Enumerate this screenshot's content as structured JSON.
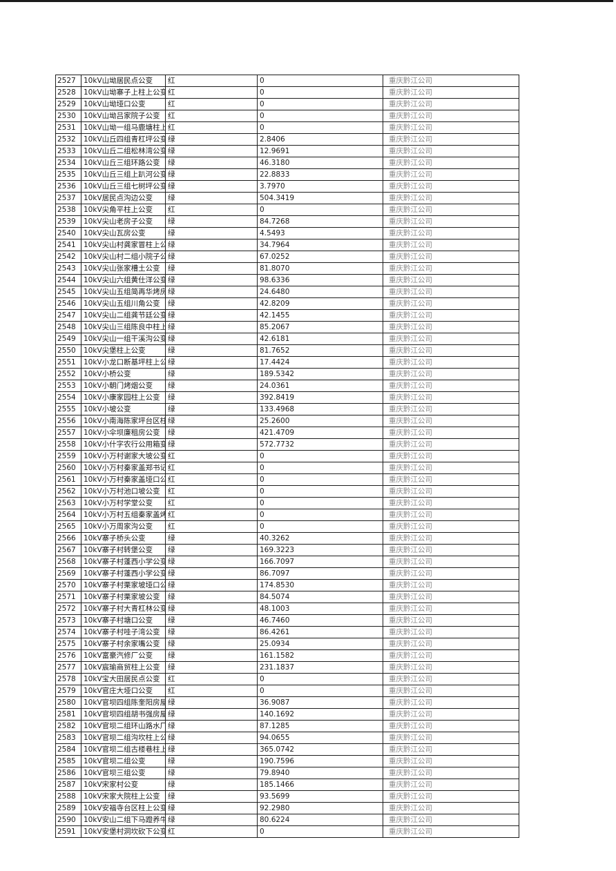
{
  "table": {
    "rows": [
      {
        "id": "2527",
        "name": "10kV山坳居民点公变",
        "status": "红",
        "value": "0",
        "company": "重庆黔江公司"
      },
      {
        "id": "2528",
        "name": "10kV山坳寨子上柱上公变",
        "status": "红",
        "value": "0",
        "company": "重庆黔江公司"
      },
      {
        "id": "2529",
        "name": "10kV山坳垭口公变",
        "status": "红",
        "value": "0",
        "company": "重庆黔江公司"
      },
      {
        "id": "2530",
        "name": "10kV山坳吕家院子公变",
        "status": "红",
        "value": "0",
        "company": "重庆黔江公司"
      },
      {
        "id": "2531",
        "name": "10kV山坳一组马鹿塘柱上",
        "status": "红",
        "value": "0",
        "company": "重庆黔江公司"
      },
      {
        "id": "2532",
        "name": "10kV山丘四组青杠坪公变",
        "status": "绿",
        "value": "2.8406",
        "company": "重庆黔江公司"
      },
      {
        "id": "2533",
        "name": "10kV山丘二组松林湾公变",
        "status": "绿",
        "value": "12.9691",
        "company": "重庆黔江公司"
      },
      {
        "id": "2534",
        "name": "10kV山丘三组环路公变",
        "status": "绿",
        "value": "46.3180",
        "company": "重庆黔江公司"
      },
      {
        "id": "2535",
        "name": "10kV山丘三组上趴河公变",
        "status": "绿",
        "value": "22.8833",
        "company": "重庆黔江公司"
      },
      {
        "id": "2536",
        "name": "10kV山丘三组七树坪公变",
        "status": "绿",
        "value": "3.7970",
        "company": "重庆黔江公司"
      },
      {
        "id": "2537",
        "name": "10kV居民点沟边公变",
        "status": "绿",
        "value": "504.3419",
        "company": "重庆黔江公司"
      },
      {
        "id": "2538",
        "name": "10kV尖角平柱上公变",
        "status": "红",
        "value": "0",
        "company": "重庆黔江公司"
      },
      {
        "id": "2539",
        "name": "10kV尖山老房子公变",
        "status": "绿",
        "value": "84.7268",
        "company": "重庆黔江公司"
      },
      {
        "id": "2540",
        "name": "10kV尖山瓦房公变",
        "status": "绿",
        "value": "4.5493",
        "company": "重庆黔江公司"
      },
      {
        "id": "2541",
        "name": "10kV尖山村龚家冒柱上公",
        "status": "绿",
        "value": "34.7964",
        "company": "重庆黔江公司"
      },
      {
        "id": "2542",
        "name": "10kV尖山村二组小院子公",
        "status": "绿",
        "value": "67.0252",
        "company": "重庆黔江公司"
      },
      {
        "id": "2543",
        "name": "10kV尖山张家槽土公变",
        "status": "绿",
        "value": "81.8070",
        "company": "重庆黔江公司"
      },
      {
        "id": "2544",
        "name": "10kV尖山六组黄仕洋公变",
        "status": "绿",
        "value": "98.6336",
        "company": "重庆黔江公司"
      },
      {
        "id": "2545",
        "name": "10kV尖山五组简再华烤房",
        "status": "绿",
        "value": "24.6480",
        "company": "重庆黔江公司"
      },
      {
        "id": "2546",
        "name": "10kV尖山五组川角公变",
        "status": "绿",
        "value": "42.8209",
        "company": "重庆黔江公司"
      },
      {
        "id": "2547",
        "name": "10kV尖山二组龚节廷公变",
        "status": "绿",
        "value": "42.1455",
        "company": "重庆黔江公司"
      },
      {
        "id": "2548",
        "name": "10kV尖山三组陈良中柱上",
        "status": "绿",
        "value": "85.2067",
        "company": "重庆黔江公司"
      },
      {
        "id": "2549",
        "name": "10kV尖山一组干溪沟公变",
        "status": "绿",
        "value": "42.6181",
        "company": "重庆黔江公司"
      },
      {
        "id": "2550",
        "name": "10kV尖堡柱上公变",
        "status": "绿",
        "value": "81.7652",
        "company": "重庆黔江公司"
      },
      {
        "id": "2551",
        "name": "10kV小龙口断基坪柱上公",
        "status": "绿",
        "value": "17.4424",
        "company": "重庆黔江公司"
      },
      {
        "id": "2552",
        "name": "10kV小桥公变",
        "status": "绿",
        "value": "189.5342",
        "company": "重庆黔江公司"
      },
      {
        "id": "2553",
        "name": "10kV小朝门烤烟公变",
        "status": "绿",
        "value": "24.0361",
        "company": "重庆黔江公司"
      },
      {
        "id": "2554",
        "name": "10kV小康家园柱上公变",
        "status": "绿",
        "value": "392.8419",
        "company": "重庆黔江公司"
      },
      {
        "id": "2555",
        "name": "10kV小坡公变",
        "status": "绿",
        "value": "133.4968",
        "company": "重庆黔江公司"
      },
      {
        "id": "2556",
        "name": "10kV小南海陈家坪台区柱",
        "status": "绿",
        "value": "25.2600",
        "company": "重庆黔江公司"
      },
      {
        "id": "2557",
        "name": "10kV小伞坝廉租房公变",
        "status": "绿",
        "value": "421.4709",
        "company": "重庆黔江公司"
      },
      {
        "id": "2558",
        "name": "10kV小什字农行公用箱变",
        "status": "绿",
        "value": "572.7732",
        "company": "重庆黔江公司"
      },
      {
        "id": "2559",
        "name": "10kV小万村谢家大坡公变",
        "status": "红",
        "value": "0",
        "company": "重庆黔江公司"
      },
      {
        "id": "2560",
        "name": "10kV小万村秦家盖郑书记",
        "status": "红",
        "value": "0",
        "company": "重庆黔江公司"
      },
      {
        "id": "2561",
        "name": "10kV小万村秦家盖垭口公",
        "status": "红",
        "value": "0",
        "company": "重庆黔江公司"
      },
      {
        "id": "2562",
        "name": "10kV小万村池口坡公变",
        "status": "红",
        "value": "0",
        "company": "重庆黔江公司"
      },
      {
        "id": "2563",
        "name": "10kV小万村学堂公变",
        "status": "红",
        "value": "0",
        "company": "重庆黔江公司"
      },
      {
        "id": "2564",
        "name": "10kV小万村五组秦家盖烤",
        "status": "红",
        "value": "0",
        "company": "重庆黔江公司"
      },
      {
        "id": "2565",
        "name": "10kV小万周家沟公变",
        "status": "红",
        "value": "0",
        "company": "重庆黔江公司"
      },
      {
        "id": "2566",
        "name": "10kV寨子桥头公变",
        "status": "绿",
        "value": "40.3262",
        "company": "重庆黔江公司"
      },
      {
        "id": "2567",
        "name": "10kV寨子村转堡公变",
        "status": "绿",
        "value": "169.3223",
        "company": "重庆黔江公司"
      },
      {
        "id": "2568",
        "name": "10kV寨子村蓬西小学公变",
        "status": "绿",
        "value": "166.7097",
        "company": "重庆黔江公司"
      },
      {
        "id": "2569",
        "name": "10kV寨子村蓬西小学公变",
        "status": "绿",
        "value": "86.7097",
        "company": "重庆黔江公司"
      },
      {
        "id": "2570",
        "name": "10kV寨子村栗家坡垭口公",
        "status": "绿",
        "value": "174.8530",
        "company": "重庆黔江公司"
      },
      {
        "id": "2571",
        "name": "10kV寨子村栗家坡公变",
        "status": "绿",
        "value": "84.5074",
        "company": "重庆黔江公司"
      },
      {
        "id": "2572",
        "name": "10kV寨子村大青杠林公变",
        "status": "绿",
        "value": "48.1003",
        "company": "重庆黔江公司"
      },
      {
        "id": "2573",
        "name": "10kV寨子村塘口公变",
        "status": "绿",
        "value": "46.7460",
        "company": "重庆黔江公司"
      },
      {
        "id": "2574",
        "name": "10kV寨子村哇子湾公变",
        "status": "绿",
        "value": "86.4261",
        "company": "重庆黔江公司"
      },
      {
        "id": "2575",
        "name": "10kV寨子村余家嘴公变",
        "status": "绿",
        "value": "25.0934",
        "company": "重庆黔江公司"
      },
      {
        "id": "2576",
        "name": "10kV富豪汽修厂公变",
        "status": "绿",
        "value": "161.1582",
        "company": "重庆黔江公司"
      },
      {
        "id": "2577",
        "name": "10kV宸瑜商贸柱上公变",
        "status": "绿",
        "value": "231.1837",
        "company": "重庆黔江公司"
      },
      {
        "id": "2578",
        "name": "10kV宝大田居民点公变",
        "status": "红",
        "value": "0",
        "company": "重庆黔江公司"
      },
      {
        "id": "2579",
        "name": "10kV官庄大垭口公变",
        "status": "红",
        "value": "0",
        "company": "重庆黔江公司"
      },
      {
        "id": "2580",
        "name": "10kV官坝四组陈奎阳房屋",
        "status": "绿",
        "value": "36.9087",
        "company": "重庆黔江公司"
      },
      {
        "id": "2581",
        "name": "10kV官坝四组胡书强房屋",
        "status": "绿",
        "value": "140.1692",
        "company": "重庆黔江公司"
      },
      {
        "id": "2582",
        "name": "10kV官坝二组环山路水厂",
        "status": "绿",
        "value": "87.1285",
        "company": "重庆黔江公司"
      },
      {
        "id": "2583",
        "name": "10kV官坝二组沟坎柱上公",
        "status": "绿",
        "value": "94.0655",
        "company": "重庆黔江公司"
      },
      {
        "id": "2584",
        "name": "10kV官坝二组古楼巷柱上",
        "status": "绿",
        "value": "365.0742",
        "company": "重庆黔江公司"
      },
      {
        "id": "2585",
        "name": "10kV官坝二组公变",
        "status": "绿",
        "value": "190.7596",
        "company": "重庆黔江公司"
      },
      {
        "id": "2586",
        "name": "10kV官坝三组公变",
        "status": "绿",
        "value": "79.8940",
        "company": "重庆黔江公司"
      },
      {
        "id": "2587",
        "name": "10kV宋家村公变",
        "status": "绿",
        "value": "185.1466",
        "company": "重庆黔江公司"
      },
      {
        "id": "2588",
        "name": "10kV宋家大院柱上公变",
        "status": "绿",
        "value": "93.5699",
        "company": "重庆黔江公司"
      },
      {
        "id": "2589",
        "name": "10kV安福寺台区柱上公变",
        "status": "绿",
        "value": "92.2980",
        "company": "重庆黔江公司"
      },
      {
        "id": "2590",
        "name": "10kV安山二组下马蹬养牛",
        "status": "绿",
        "value": "80.6224",
        "company": "重庆黔江公司"
      },
      {
        "id": "2591",
        "name": "10kV安堡村洞坎砍下公变",
        "status": "红",
        "value": "0",
        "company": "重庆黔江公司"
      }
    ]
  }
}
